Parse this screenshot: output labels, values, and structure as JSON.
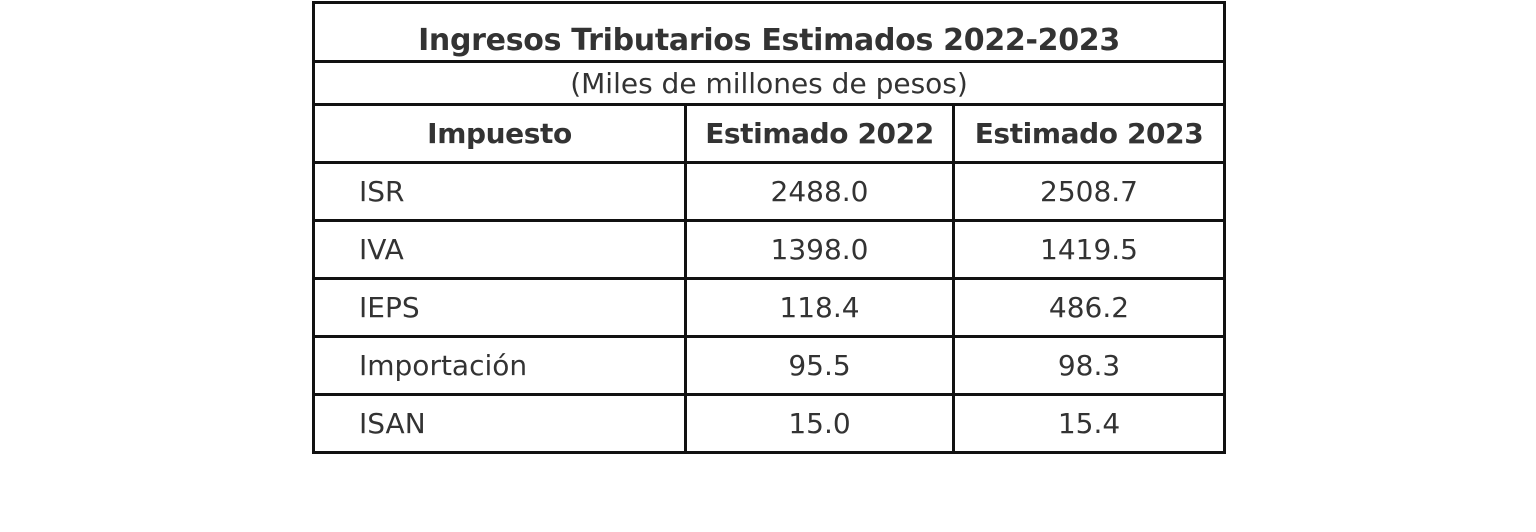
{
  "chart_data": {
    "type": "table",
    "title": "Ingresos Tributarios Estimados 2022-2023",
    "subtitle": "(Miles de millones de pesos)",
    "columns": [
      "Impuesto",
      "Estimado 2022",
      "Estimado 2023"
    ],
    "rows": [
      {
        "impuesto": "ISR",
        "estimado_2022": "2488.0",
        "estimado_2023": "2508.7"
      },
      {
        "impuesto": "IVA",
        "estimado_2022": "1398.0",
        "estimado_2023": "1419.5"
      },
      {
        "impuesto": "IEPS",
        "estimado_2022": "118.4",
        "estimado_2023": "486.2"
      },
      {
        "impuesto": "Importación",
        "estimado_2022": "95.5",
        "estimado_2023": "98.3"
      },
      {
        "impuesto": "ISAN",
        "estimado_2022": "15.0",
        "estimado_2023": "15.4"
      }
    ]
  }
}
